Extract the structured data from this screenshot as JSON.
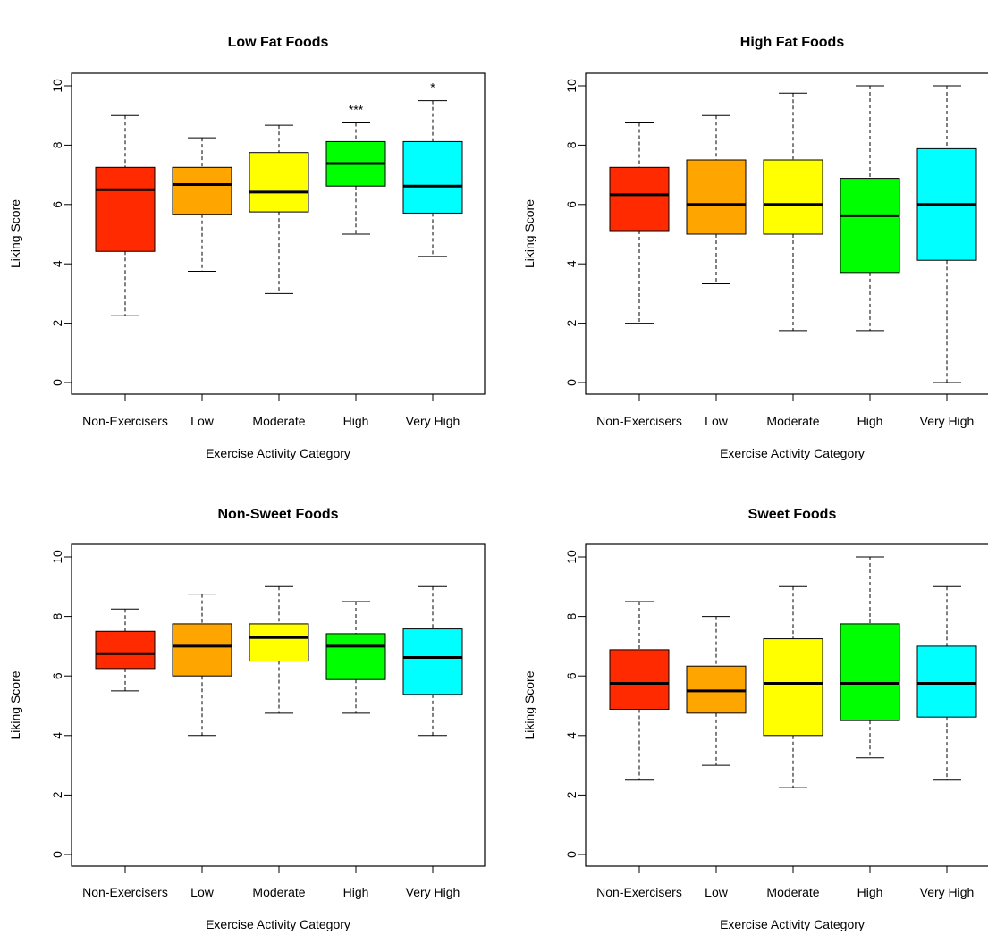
{
  "chart_data": [
    {
      "type": "box",
      "title": "Low Fat Foods",
      "xlabel": "Exercise Activity Category",
      "ylabel": "Liking Score",
      "ylim": [
        0,
        10
      ],
      "yticks": [
        0,
        2,
        4,
        6,
        8,
        10
      ],
      "categories": [
        "Non-Exercisers",
        "Low",
        "Moderate",
        "High",
        "Very High"
      ],
      "colors": [
        "#ff2a00",
        "#ffa500",
        "#ffff00",
        "#00ff00",
        "#00ffff"
      ],
      "boxes": [
        {
          "min": 2.25,
          "q1": 4.42,
          "median": 6.5,
          "q3": 7.25,
          "max": 9.0
        },
        {
          "min": 3.75,
          "q1": 5.67,
          "median": 6.67,
          "q3": 7.25,
          "max": 8.25
        },
        {
          "min": 3.0,
          "q1": 5.75,
          "median": 6.42,
          "q3": 7.75,
          "max": 8.67
        },
        {
          "min": 5.0,
          "q1": 6.62,
          "median": 7.38,
          "q3": 8.12,
          "max": 8.75
        },
        {
          "min": 4.25,
          "q1": 5.71,
          "median": 6.62,
          "q3": 8.12,
          "max": 9.5
        }
      ],
      "annotations": [
        {
          "category": "High",
          "text": "***"
        },
        {
          "category": "Very High",
          "text": "*"
        }
      ]
    },
    {
      "type": "box",
      "title": "High Fat Foods",
      "xlabel": "Exercise Activity Category",
      "ylabel": "Liking Score",
      "ylim": [
        0,
        10
      ],
      "yticks": [
        0,
        2,
        4,
        6,
        8,
        10
      ],
      "categories": [
        "Non-Exercisers",
        "Low",
        "Moderate",
        "High",
        "Very High"
      ],
      "colors": [
        "#ff2a00",
        "#ffa500",
        "#ffff00",
        "#00ff00",
        "#00ffff"
      ],
      "boxes": [
        {
          "min": 2.0,
          "q1": 5.12,
          "median": 6.33,
          "q3": 7.25,
          "max": 8.75
        },
        {
          "min": 3.33,
          "q1": 5.0,
          "median": 6.0,
          "q3": 7.5,
          "max": 9.0
        },
        {
          "min": 1.75,
          "q1": 5.0,
          "median": 6.0,
          "q3": 7.5,
          "max": 9.75
        },
        {
          "min": 1.75,
          "q1": 3.71,
          "median": 5.62,
          "q3": 6.88,
          "max": 10.0
        },
        {
          "min": 0.0,
          "q1": 4.12,
          "median": 6.0,
          "q3": 7.88,
          "max": 10.0
        }
      ],
      "annotations": []
    },
    {
      "type": "box",
      "title": "Non-Sweet Foods",
      "xlabel": "Exercise Activity Category",
      "ylabel": "Liking Score",
      "ylim": [
        0,
        10
      ],
      "yticks": [
        0,
        2,
        4,
        6,
        8,
        10
      ],
      "categories": [
        "Non-Exercisers",
        "Low",
        "Moderate",
        "High",
        "Very High"
      ],
      "colors": [
        "#ff2a00",
        "#ffa500",
        "#ffff00",
        "#00ff00",
        "#00ffff"
      ],
      "boxes": [
        {
          "min": 5.5,
          "q1": 6.25,
          "median": 6.75,
          "q3": 7.5,
          "max": 8.25
        },
        {
          "min": 4.0,
          "q1": 6.0,
          "median": 7.0,
          "q3": 7.75,
          "max": 8.75
        },
        {
          "min": 4.75,
          "q1": 6.5,
          "median": 7.29,
          "q3": 7.75,
          "max": 9.0
        },
        {
          "min": 4.75,
          "q1": 5.88,
          "median": 7.0,
          "q3": 7.42,
          "max": 8.5
        },
        {
          "min": 4.0,
          "q1": 5.38,
          "median": 6.62,
          "q3": 7.58,
          "max": 9.0
        }
      ],
      "annotations": []
    },
    {
      "type": "box",
      "title": "Sweet Foods",
      "xlabel": "Exercise Activity Category",
      "ylabel": "Liking Score",
      "ylim": [
        0,
        10
      ],
      "yticks": [
        0,
        2,
        4,
        6,
        8,
        10
      ],
      "categories": [
        "Non-Exercisers",
        "Low",
        "Moderate",
        "High",
        "Very High"
      ],
      "colors": [
        "#ff2a00",
        "#ffa500",
        "#ffff00",
        "#00ff00",
        "#00ffff"
      ],
      "boxes": [
        {
          "min": 2.5,
          "q1": 4.88,
          "median": 5.75,
          "q3": 6.88,
          "max": 8.5
        },
        {
          "min": 3.0,
          "q1": 4.75,
          "median": 5.5,
          "q3": 6.33,
          "max": 8.0
        },
        {
          "min": 2.25,
          "q1": 4.0,
          "median": 5.75,
          "q3": 7.25,
          "max": 9.0
        },
        {
          "min": 3.25,
          "q1": 4.5,
          "median": 5.75,
          "q3": 7.75,
          "max": 10.0
        },
        {
          "min": 2.5,
          "q1": 4.62,
          "median": 5.75,
          "q3": 7.0,
          "max": 9.0
        }
      ],
      "annotations": []
    }
  ]
}
